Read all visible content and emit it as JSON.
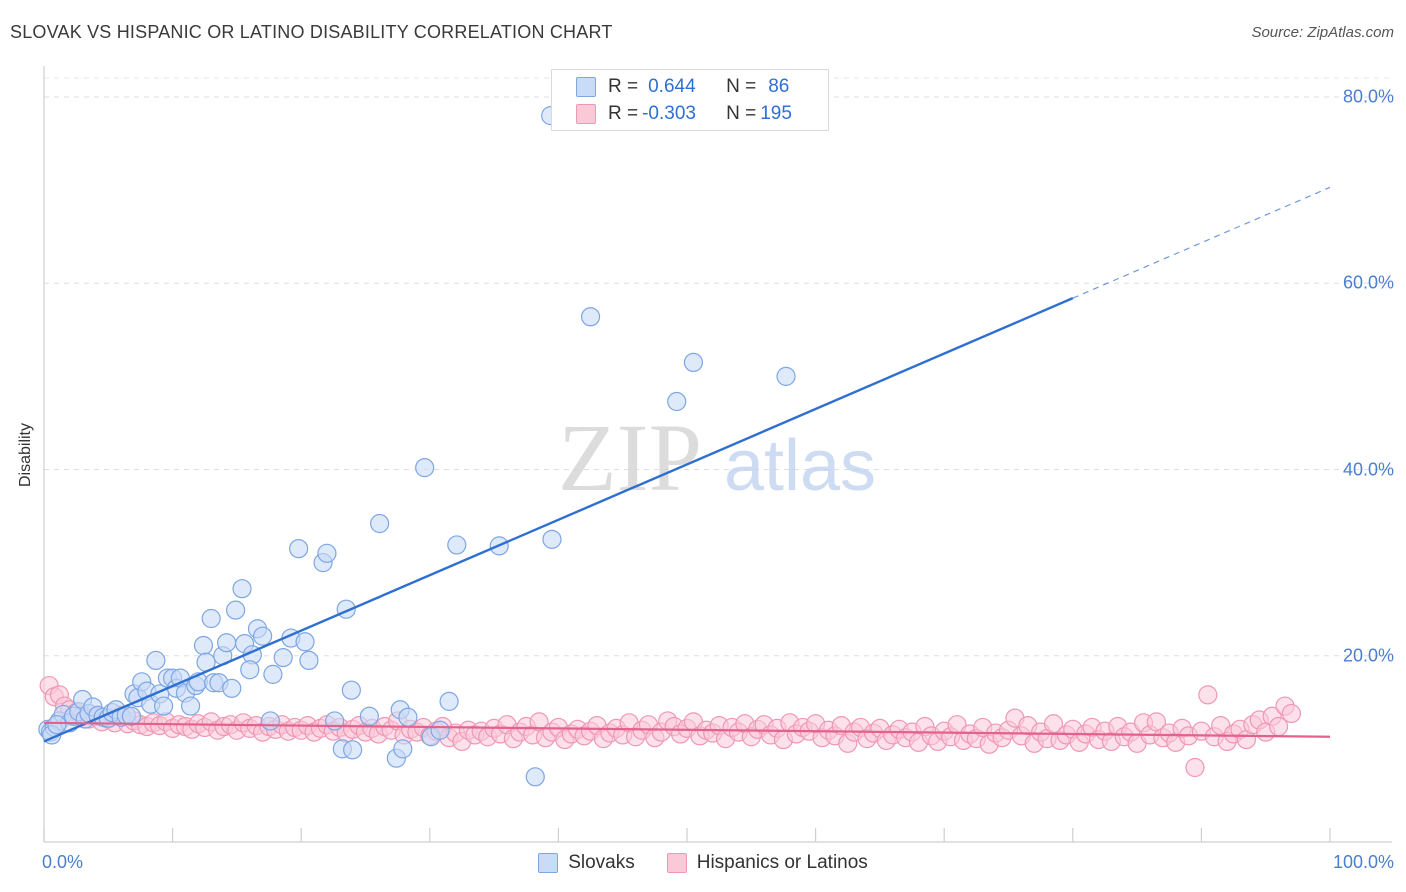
{
  "title": "SLOVAK VS HISPANIC OR LATINO DISABILITY CORRELATION CHART",
  "source": "Source: ZipAtlas.com",
  "watermark": {
    "zip": "ZIP",
    "atlas": "atlas"
  },
  "legend_top": {
    "rows": [
      {
        "r_label": "R = ",
        "r_value": "0.644",
        "n_label": "N = ",
        "n_value": "86"
      },
      {
        "r_label": "R = ",
        "r_value": "-0.303",
        "n_label": "N = ",
        "n_value": "195"
      }
    ]
  },
  "chart_data": {
    "type": "scatter",
    "title": "SLOVAK VS HISPANIC OR LATINO DISABILITY CORRELATION CHART",
    "xlabel": "",
    "ylabel": "Disability",
    "xlim": [
      0,
      100
    ],
    "ylim": [
      0,
      80
    ],
    "x_tick_labels": [
      "0.0%",
      "100.0%"
    ],
    "y_ticks": [
      20,
      40,
      60,
      80
    ],
    "y_tick_labels": [
      "20.0%",
      "40.0%",
      "60.0%",
      "80.0%"
    ],
    "legend_position": "bottom",
    "series": [
      {
        "name": "Slovaks",
        "color": "#7da6e3",
        "fill": "#c8dbf7",
        "line_color": "#2f6fd1",
        "r": 0.644,
        "n": 86,
        "trend": {
          "x0": 0,
          "y0": 10.8,
          "x1": 80,
          "y1": 58.4,
          "dash_to_x": 100,
          "dash_to_y": 70.3
        },
        "points": [
          [
            0.3,
            12.1
          ],
          [
            0.5,
            11.8
          ],
          [
            0.8,
            12.3
          ],
          [
            1.2,
            13.0
          ],
          [
            1.5,
            13.7
          ],
          [
            2.0,
            12.8
          ],
          [
            2.3,
            13.5
          ],
          [
            2.7,
            14.0
          ],
          [
            3.0,
            15.3
          ],
          [
            3.2,
            13.2
          ],
          [
            3.5,
            13.8
          ],
          [
            3.8,
            14.5
          ],
          [
            4.2,
            13.6
          ],
          [
            4.6,
            13.4
          ],
          [
            5.0,
            13.3
          ],
          [
            5.3,
            13.9
          ],
          [
            5.6,
            14.2
          ],
          [
            6.0,
            13.4
          ],
          [
            6.4,
            13.6
          ],
          [
            7.0,
            15.9
          ],
          [
            7.3,
            15.5
          ],
          [
            7.6,
            17.2
          ],
          [
            8.0,
            16.2
          ],
          [
            8.3,
            14.8
          ],
          [
            8.7,
            19.5
          ],
          [
            9.0,
            15.9
          ],
          [
            9.3,
            14.6
          ],
          [
            9.6,
            17.6
          ],
          [
            10.0,
            17.6
          ],
          [
            10.3,
            16.5
          ],
          [
            10.6,
            17.6
          ],
          [
            11.0,
            16.0
          ],
          [
            11.4,
            14.6
          ],
          [
            11.8,
            16.8
          ],
          [
            12.0,
            17.2
          ],
          [
            12.4,
            21.1
          ],
          [
            12.6,
            19.3
          ],
          [
            13.0,
            24.0
          ],
          [
            13.2,
            17.1
          ],
          [
            13.6,
            17.1
          ],
          [
            13.9,
            20.0
          ],
          [
            14.2,
            21.4
          ],
          [
            14.6,
            16.5
          ],
          [
            14.9,
            24.9
          ],
          [
            15.4,
            27.2
          ],
          [
            15.6,
            21.3
          ],
          [
            16.2,
            20.1
          ],
          [
            16.6,
            22.9
          ],
          [
            17.0,
            22.1
          ],
          [
            17.6,
            13.0
          ],
          [
            17.8,
            18.0
          ],
          [
            18.6,
            19.8
          ],
          [
            19.2,
            21.9
          ],
          [
            19.8,
            31.5
          ],
          [
            20.3,
            21.5
          ],
          [
            20.6,
            19.5
          ],
          [
            21.7,
            30.0
          ],
          [
            22.0,
            31.0
          ],
          [
            22.6,
            13.0
          ],
          [
            23.2,
            10.0
          ],
          [
            23.5,
            25.0
          ],
          [
            23.9,
            16.3
          ],
          [
            24.0,
            9.9
          ],
          [
            25.3,
            13.5
          ],
          [
            26.1,
            34.2
          ],
          [
            27.4,
            9.0
          ],
          [
            27.7,
            14.2
          ],
          [
            28.3,
            13.4
          ],
          [
            29.6,
            40.2
          ],
          [
            30.1,
            11.3
          ],
          [
            30.8,
            12.0
          ],
          [
            31.5,
            15.1
          ],
          [
            32.1,
            31.9
          ],
          [
            35.4,
            31.8
          ],
          [
            39.5,
            32.5
          ],
          [
            38.2,
            7.0
          ],
          [
            39.4,
            78.0
          ],
          [
            42.5,
            56.4
          ],
          [
            49.2,
            47.3
          ],
          [
            50.5,
            51.5
          ],
          [
            57.7,
            50.0
          ],
          [
            6.8,
            13.5
          ],
          [
            16.0,
            18.5
          ],
          [
            27.9,
            10.0
          ],
          [
            0.6,
            11.5
          ],
          [
            1.0,
            12.6
          ]
        ]
      },
      {
        "name": "Hispanics or Latinos",
        "color": "#ef97b5",
        "fill": "#f9c9d8",
        "line_color": "#e2628c",
        "r": -0.303,
        "n": 195,
        "trend": {
          "x0": 0,
          "y0": 12.8,
          "x1": 100,
          "y1": 11.3
        },
        "points": [
          [
            0.4,
            16.8
          ],
          [
            0.8,
            15.6
          ],
          [
            1.2,
            15.8
          ],
          [
            1.6,
            14.6
          ],
          [
            2.0,
            14.2
          ],
          [
            2.5,
            13.9
          ],
          [
            3.0,
            13.6
          ],
          [
            3.5,
            13.2
          ],
          [
            4.0,
            13.5
          ],
          [
            4.5,
            12.9
          ],
          [
            5.0,
            13.2
          ],
          [
            5.5,
            12.8
          ],
          [
            6.0,
            13.6
          ],
          [
            6.5,
            12.7
          ],
          [
            7.0,
            13.0
          ],
          [
            7.5,
            12.6
          ],
          [
            8.0,
            12.4
          ],
          [
            8.5,
            12.8
          ],
          [
            9.0,
            12.5
          ],
          [
            9.5,
            12.9
          ],
          [
            10.0,
            12.2
          ],
          [
            10.5,
            12.6
          ],
          [
            11.0,
            12.4
          ],
          [
            11.5,
            12.1
          ],
          [
            12.0,
            12.7
          ],
          [
            12.5,
            12.3
          ],
          [
            13.0,
            12.9
          ],
          [
            13.5,
            12.0
          ],
          [
            14.0,
            12.4
          ],
          [
            14.5,
            12.6
          ],
          [
            15.0,
            12.0
          ],
          [
            15.5,
            12.8
          ],
          [
            16.0,
            12.2
          ],
          [
            16.5,
            12.5
          ],
          [
            17.0,
            11.8
          ],
          [
            17.5,
            12.4
          ],
          [
            18.0,
            12.1
          ],
          [
            18.5,
            12.6
          ],
          [
            19.0,
            11.9
          ],
          [
            19.5,
            12.3
          ],
          [
            20.0,
            12.0
          ],
          [
            20.5,
            12.5
          ],
          [
            21.0,
            11.8
          ],
          [
            21.5,
            12.2
          ],
          [
            22.0,
            12.6
          ],
          [
            22.5,
            11.9
          ],
          [
            23.0,
            12.3
          ],
          [
            23.5,
            11.7
          ],
          [
            24.0,
            12.1
          ],
          [
            24.5,
            12.5
          ],
          [
            25.0,
            11.8
          ],
          [
            25.5,
            12.2
          ],
          [
            26.0,
            11.6
          ],
          [
            26.5,
            12.4
          ],
          [
            27.0,
            12.0
          ],
          [
            27.5,
            13.0
          ],
          [
            28.0,
            11.5
          ],
          [
            28.5,
            12.1
          ],
          [
            29.0,
            11.8
          ],
          [
            29.5,
            12.3
          ],
          [
            30.0,
            11.4
          ],
          [
            30.5,
            11.9
          ],
          [
            31.0,
            12.4
          ],
          [
            31.5,
            11.2
          ],
          [
            32.0,
            11.7
          ],
          [
            32.5,
            10.8
          ],
          [
            33.0,
            12.0
          ],
          [
            33.5,
            11.5
          ],
          [
            34.0,
            11.9
          ],
          [
            34.5,
            11.3
          ],
          [
            35.0,
            12.2
          ],
          [
            35.5,
            11.6
          ],
          [
            36.0,
            12.6
          ],
          [
            36.5,
            11.1
          ],
          [
            37.0,
            11.8
          ],
          [
            37.5,
            12.4
          ],
          [
            38.0,
            11.5
          ],
          [
            38.5,
            12.9
          ],
          [
            39.0,
            11.2
          ],
          [
            39.5,
            11.8
          ],
          [
            40.0,
            12.3
          ],
          [
            40.5,
            11.0
          ],
          [
            41.0,
            11.6
          ],
          [
            41.5,
            12.1
          ],
          [
            42.0,
            11.4
          ],
          [
            42.5,
            11.9
          ],
          [
            43.0,
            12.5
          ],
          [
            43.5,
            11.1
          ],
          [
            44.0,
            11.7
          ],
          [
            44.5,
            12.2
          ],
          [
            45.0,
            11.5
          ],
          [
            45.5,
            12.8
          ],
          [
            46.0,
            11.3
          ],
          [
            46.5,
            12.0
          ],
          [
            47.0,
            12.6
          ],
          [
            47.5,
            11.2
          ],
          [
            48.0,
            11.8
          ],
          [
            48.5,
            13.0
          ],
          [
            49.0,
            12.4
          ],
          [
            49.5,
            11.6
          ],
          [
            50.0,
            12.2
          ],
          [
            50.5,
            12.9
          ],
          [
            51.0,
            11.4
          ],
          [
            51.5,
            12.0
          ],
          [
            52.0,
            11.7
          ],
          [
            52.5,
            12.5
          ],
          [
            53.0,
            11.1
          ],
          [
            53.5,
            12.3
          ],
          [
            54.0,
            11.8
          ],
          [
            54.5,
            12.7
          ],
          [
            55.0,
            11.3
          ],
          [
            55.5,
            12.1
          ],
          [
            56.0,
            12.6
          ],
          [
            56.5,
            11.5
          ],
          [
            57.0,
            12.2
          ],
          [
            57.5,
            11.0
          ],
          [
            58.0,
            12.8
          ],
          [
            58.5,
            11.6
          ],
          [
            59.0,
            12.3
          ],
          [
            59.5,
            11.9
          ],
          [
            60.0,
            12.7
          ],
          [
            60.5,
            11.2
          ],
          [
            61.0,
            12.0
          ],
          [
            61.5,
            11.4
          ],
          [
            62.0,
            12.5
          ],
          [
            62.5,
            10.6
          ],
          [
            63.0,
            11.8
          ],
          [
            63.5,
            12.3
          ],
          [
            64.0,
            11.1
          ],
          [
            64.5,
            11.7
          ],
          [
            65.0,
            12.2
          ],
          [
            65.5,
            10.9
          ],
          [
            66.0,
            11.5
          ],
          [
            66.5,
            12.1
          ],
          [
            67.0,
            11.2
          ],
          [
            67.5,
            11.8
          ],
          [
            68.0,
            10.7
          ],
          [
            68.5,
            12.4
          ],
          [
            69.0,
            11.4
          ],
          [
            69.5,
            10.8
          ],
          [
            70.0,
            11.9
          ],
          [
            70.5,
            11.3
          ],
          [
            71.0,
            12.6
          ],
          [
            71.5,
            10.9
          ],
          [
            72.0,
            11.6
          ],
          [
            72.5,
            11.1
          ],
          [
            73.0,
            12.3
          ],
          [
            73.5,
            10.5
          ],
          [
            74.0,
            11.7
          ],
          [
            74.5,
            11.2
          ],
          [
            75.0,
            12.0
          ],
          [
            75.5,
            13.3
          ],
          [
            76.0,
            11.4
          ],
          [
            76.5,
            12.5
          ],
          [
            77.0,
            10.6
          ],
          [
            77.5,
            11.8
          ],
          [
            78.0,
            11.1
          ],
          [
            78.5,
            12.7
          ],
          [
            79.0,
            10.9
          ],
          [
            79.5,
            11.5
          ],
          [
            80.0,
            12.1
          ],
          [
            80.5,
            10.7
          ],
          [
            81.0,
            11.6
          ],
          [
            81.5,
            12.3
          ],
          [
            82.0,
            11.0
          ],
          [
            82.5,
            11.9
          ],
          [
            83.0,
            10.8
          ],
          [
            83.5,
            12.4
          ],
          [
            84.0,
            11.3
          ],
          [
            84.5,
            11.8
          ],
          [
            85.0,
            10.6
          ],
          [
            85.5,
            12.8
          ],
          [
            86.0,
            11.5
          ],
          [
            86.5,
            12.9
          ],
          [
            87.0,
            11.2
          ],
          [
            87.5,
            11.7
          ],
          [
            88.0,
            10.7
          ],
          [
            88.5,
            12.2
          ],
          [
            89.0,
            11.4
          ],
          [
            89.5,
            8.0
          ],
          [
            90.0,
            11.9
          ],
          [
            90.5,
            15.8
          ],
          [
            91.0,
            11.3
          ],
          [
            91.5,
            12.5
          ],
          [
            92.0,
            10.8
          ],
          [
            92.5,
            11.6
          ],
          [
            93.0,
            12.1
          ],
          [
            93.5,
            11.0
          ],
          [
            94.0,
            12.6
          ],
          [
            94.5,
            13.1
          ],
          [
            95.0,
            11.8
          ],
          [
            95.5,
            13.5
          ],
          [
            96.0,
            12.4
          ],
          [
            96.5,
            14.6
          ],
          [
            97.0,
            13.8
          ]
        ]
      }
    ]
  },
  "legend_bottom": {
    "items": [
      {
        "label": "Slovaks"
      },
      {
        "label": "Hispanics or Latinos"
      }
    ]
  }
}
